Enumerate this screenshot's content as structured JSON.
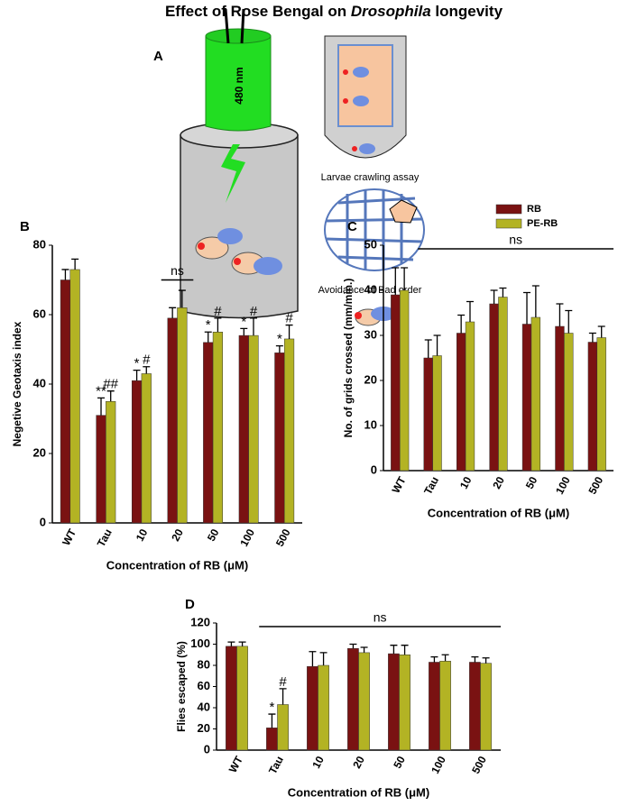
{
  "figure": {
    "title": [
      "Effect of Rose Bengal on ",
      "Drosophila",
      " longevity"
    ],
    "panel": "A",
    "labels": [
      "480 nm",
      "Larvae crawling assay",
      "Avoidance of Bad order"
    ]
  },
  "chart_data": [
    {
      "type": "bar",
      "panel": "B",
      "ylabel": "Negetive Geotaxis index",
      "xlabel": "Concentration of RB (μM)",
      "categories": [
        "WT",
        "Tau",
        "10",
        "20",
        "50",
        "100",
        "500"
      ],
      "ylim": [
        0,
        80
      ],
      "yticks": [
        0,
        20,
        40,
        60,
        80
      ],
      "series": [
        {
          "name": "RB",
          "color": "#7a1212",
          "values": [
            70,
            31,
            41,
            59,
            52,
            54,
            49
          ],
          "errors": [
            3,
            5,
            3,
            3,
            3,
            2,
            2
          ],
          "significance": [
            null,
            "**",
            "*",
            null,
            "*",
            "*",
            "*"
          ]
        },
        {
          "name": "PE-RB",
          "color": "#b3b324",
          "values": [
            73,
            35,
            43,
            62,
            55,
            54,
            53
          ],
          "errors": [
            3,
            3,
            2,
            5,
            4,
            5,
            4
          ],
          "significance": [
            null,
            "##",
            "#",
            null,
            "#",
            "#",
            "#"
          ]
        }
      ],
      "annotations": [
        {
          "text": "ns",
          "categories": [
            "20",
            "20"
          ]
        }
      ]
    },
    {
      "type": "bar",
      "panel": "C",
      "ylabel": "No. of grids crossed (mm/min.)",
      "xlabel": "Concentration of RB (μM)",
      "categories": [
        "WT",
        "Tau",
        "10",
        "20",
        "50",
        "100",
        "500"
      ],
      "ylim": [
        0,
        50
      ],
      "yticks": [
        0,
        10,
        20,
        30,
        40,
        50
      ],
      "legend": "top-right",
      "series": [
        {
          "name": "RB",
          "color": "#7a1212",
          "values": [
            39,
            25,
            30.5,
            37,
            32.5,
            32,
            28.5
          ],
          "errors": [
            6,
            4,
            4,
            3,
            7,
            5,
            2
          ]
        },
        {
          "name": "PE-RB",
          "color": "#b3b324",
          "values": [
            40,
            25.5,
            33,
            38.5,
            34,
            30.5,
            29.5
          ],
          "errors": [
            5,
            4.5,
            4.5,
            2,
            7,
            5,
            2.5
          ]
        }
      ],
      "annotations": [
        {
          "text": "ns",
          "categories": [
            "Tau",
            "500"
          ]
        }
      ]
    },
    {
      "type": "bar",
      "panel": "D",
      "ylabel": "Flies escaped (%)",
      "xlabel": "Concentration of RB (μM)",
      "categories": [
        "WT",
        "Tau",
        "10",
        "20",
        "50",
        "100",
        "500"
      ],
      "ylim": [
        0,
        120
      ],
      "yticks": [
        0,
        20,
        40,
        60,
        80,
        100,
        120
      ],
      "series": [
        {
          "name": "RB",
          "color": "#7a1212",
          "values": [
            98,
            21,
            79,
            96,
            91,
            83,
            83
          ],
          "errors": [
            4,
            13,
            14,
            4,
            8,
            5,
            5
          ],
          "significance": [
            null,
            "*",
            null,
            null,
            null,
            null,
            null
          ]
        },
        {
          "name": "PE-RB",
          "color": "#b3b324",
          "values": [
            98,
            43,
            80,
            92,
            90,
            84,
            82
          ],
          "errors": [
            4,
            15,
            12,
            5,
            9,
            6,
            5
          ],
          "significance": [
            null,
            "#",
            null,
            null,
            null,
            null,
            null
          ]
        }
      ],
      "annotations": [
        {
          "text": "ns",
          "categories": [
            "Tau",
            "500"
          ]
        }
      ]
    }
  ]
}
